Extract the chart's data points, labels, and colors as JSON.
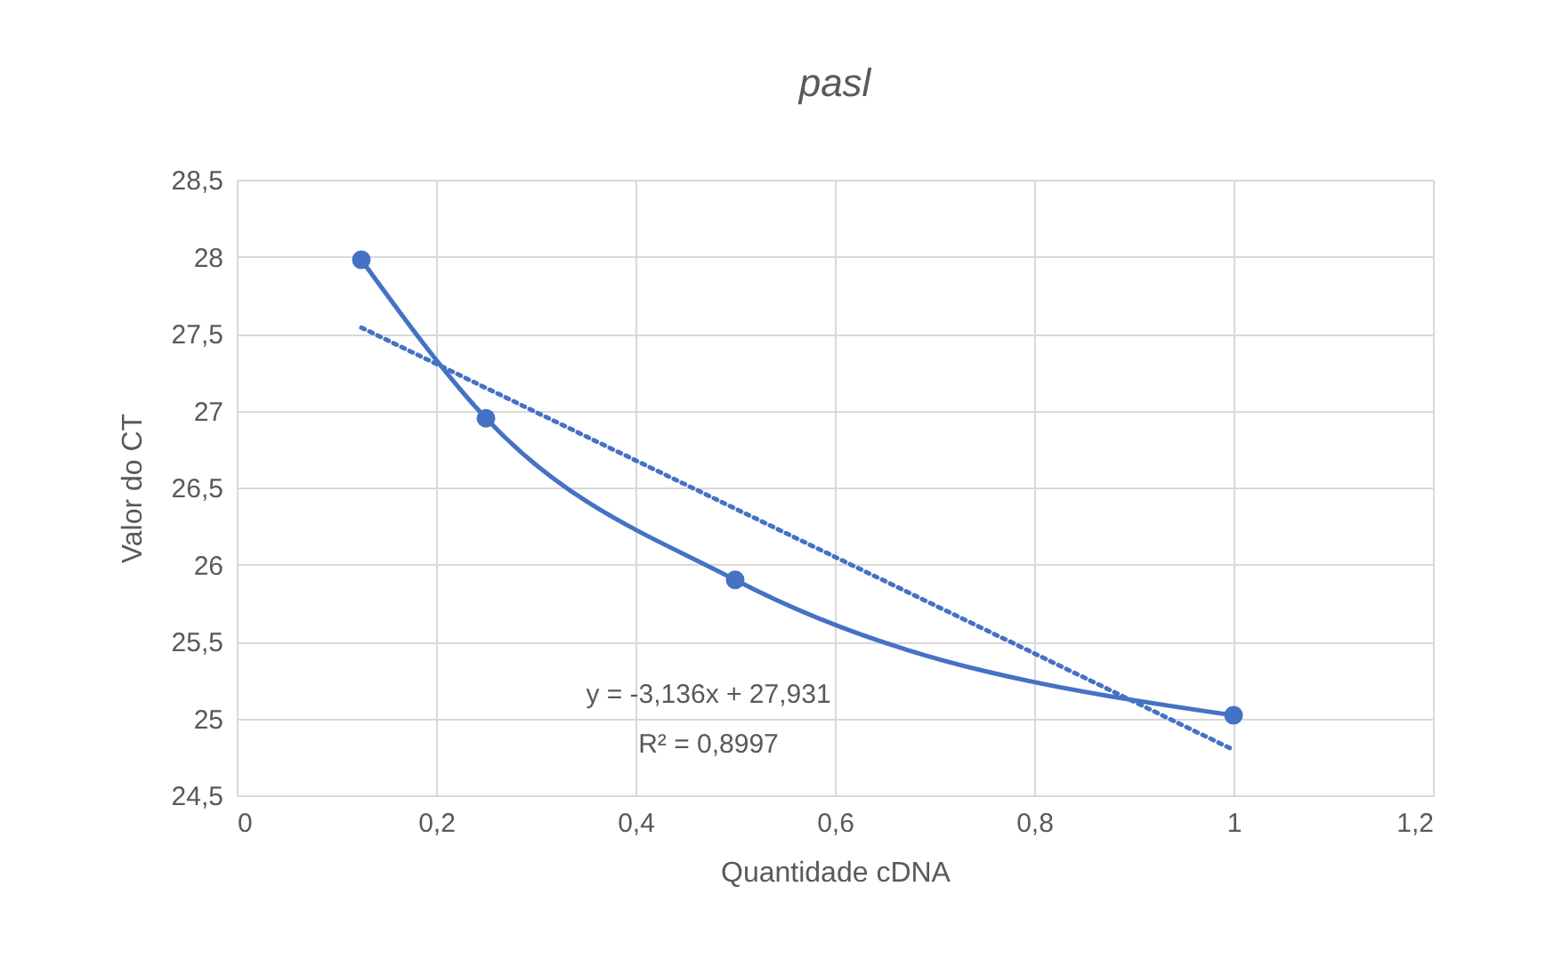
{
  "chart_data": {
    "type": "line",
    "title": "pasl",
    "xlabel": "Quantidade cDNA",
    "ylabel": "Valor do CT",
    "x": [
      0.125,
      0.25,
      0.5,
      1
    ],
    "series": [
      {
        "color": "#4472c4",
        "values": [
          27.98,
          26.95,
          25.9,
          25.02
        ],
        "marker": "circle",
        "line_style": "solid"
      },
      {
        "type": "line",
        "color": "#4472c4",
        "x": [
          0.125,
          1
        ],
        "values": [
          27.539,
          24.795
        ],
        "marker": "none",
        "line_style": "dotted"
      }
    ],
    "xlim": [
      0,
      1.2
    ],
    "xticks": [
      0,
      {
        "value": 0.2,
        "label": "0,2"
      },
      {
        "value": 0.4,
        "label": "0,4"
      },
      {
        "value": 0.6,
        "label": "0,6"
      },
      {
        "value": 0.8,
        "label": "0,8"
      },
      1,
      {
        "value": 1.2,
        "label": "1,2"
      }
    ],
    "ylim": [
      24.5,
      28.5
    ],
    "yticks": [
      {
        "value": 24.5,
        "label": "24,5"
      },
      25,
      {
        "value": 25.5,
        "label": "25,5"
      },
      26,
      {
        "value": 26.5,
        "label": "26,5"
      },
      27,
      {
        "value": 27.5,
        "label": "27,5"
      },
      28,
      {
        "value": 28.5,
        "label": "28,5"
      }
    ],
    "grid": true,
    "annotations": [
      "y = -3,136x + 27,931",
      "R² = 0,8997"
    ]
  }
}
